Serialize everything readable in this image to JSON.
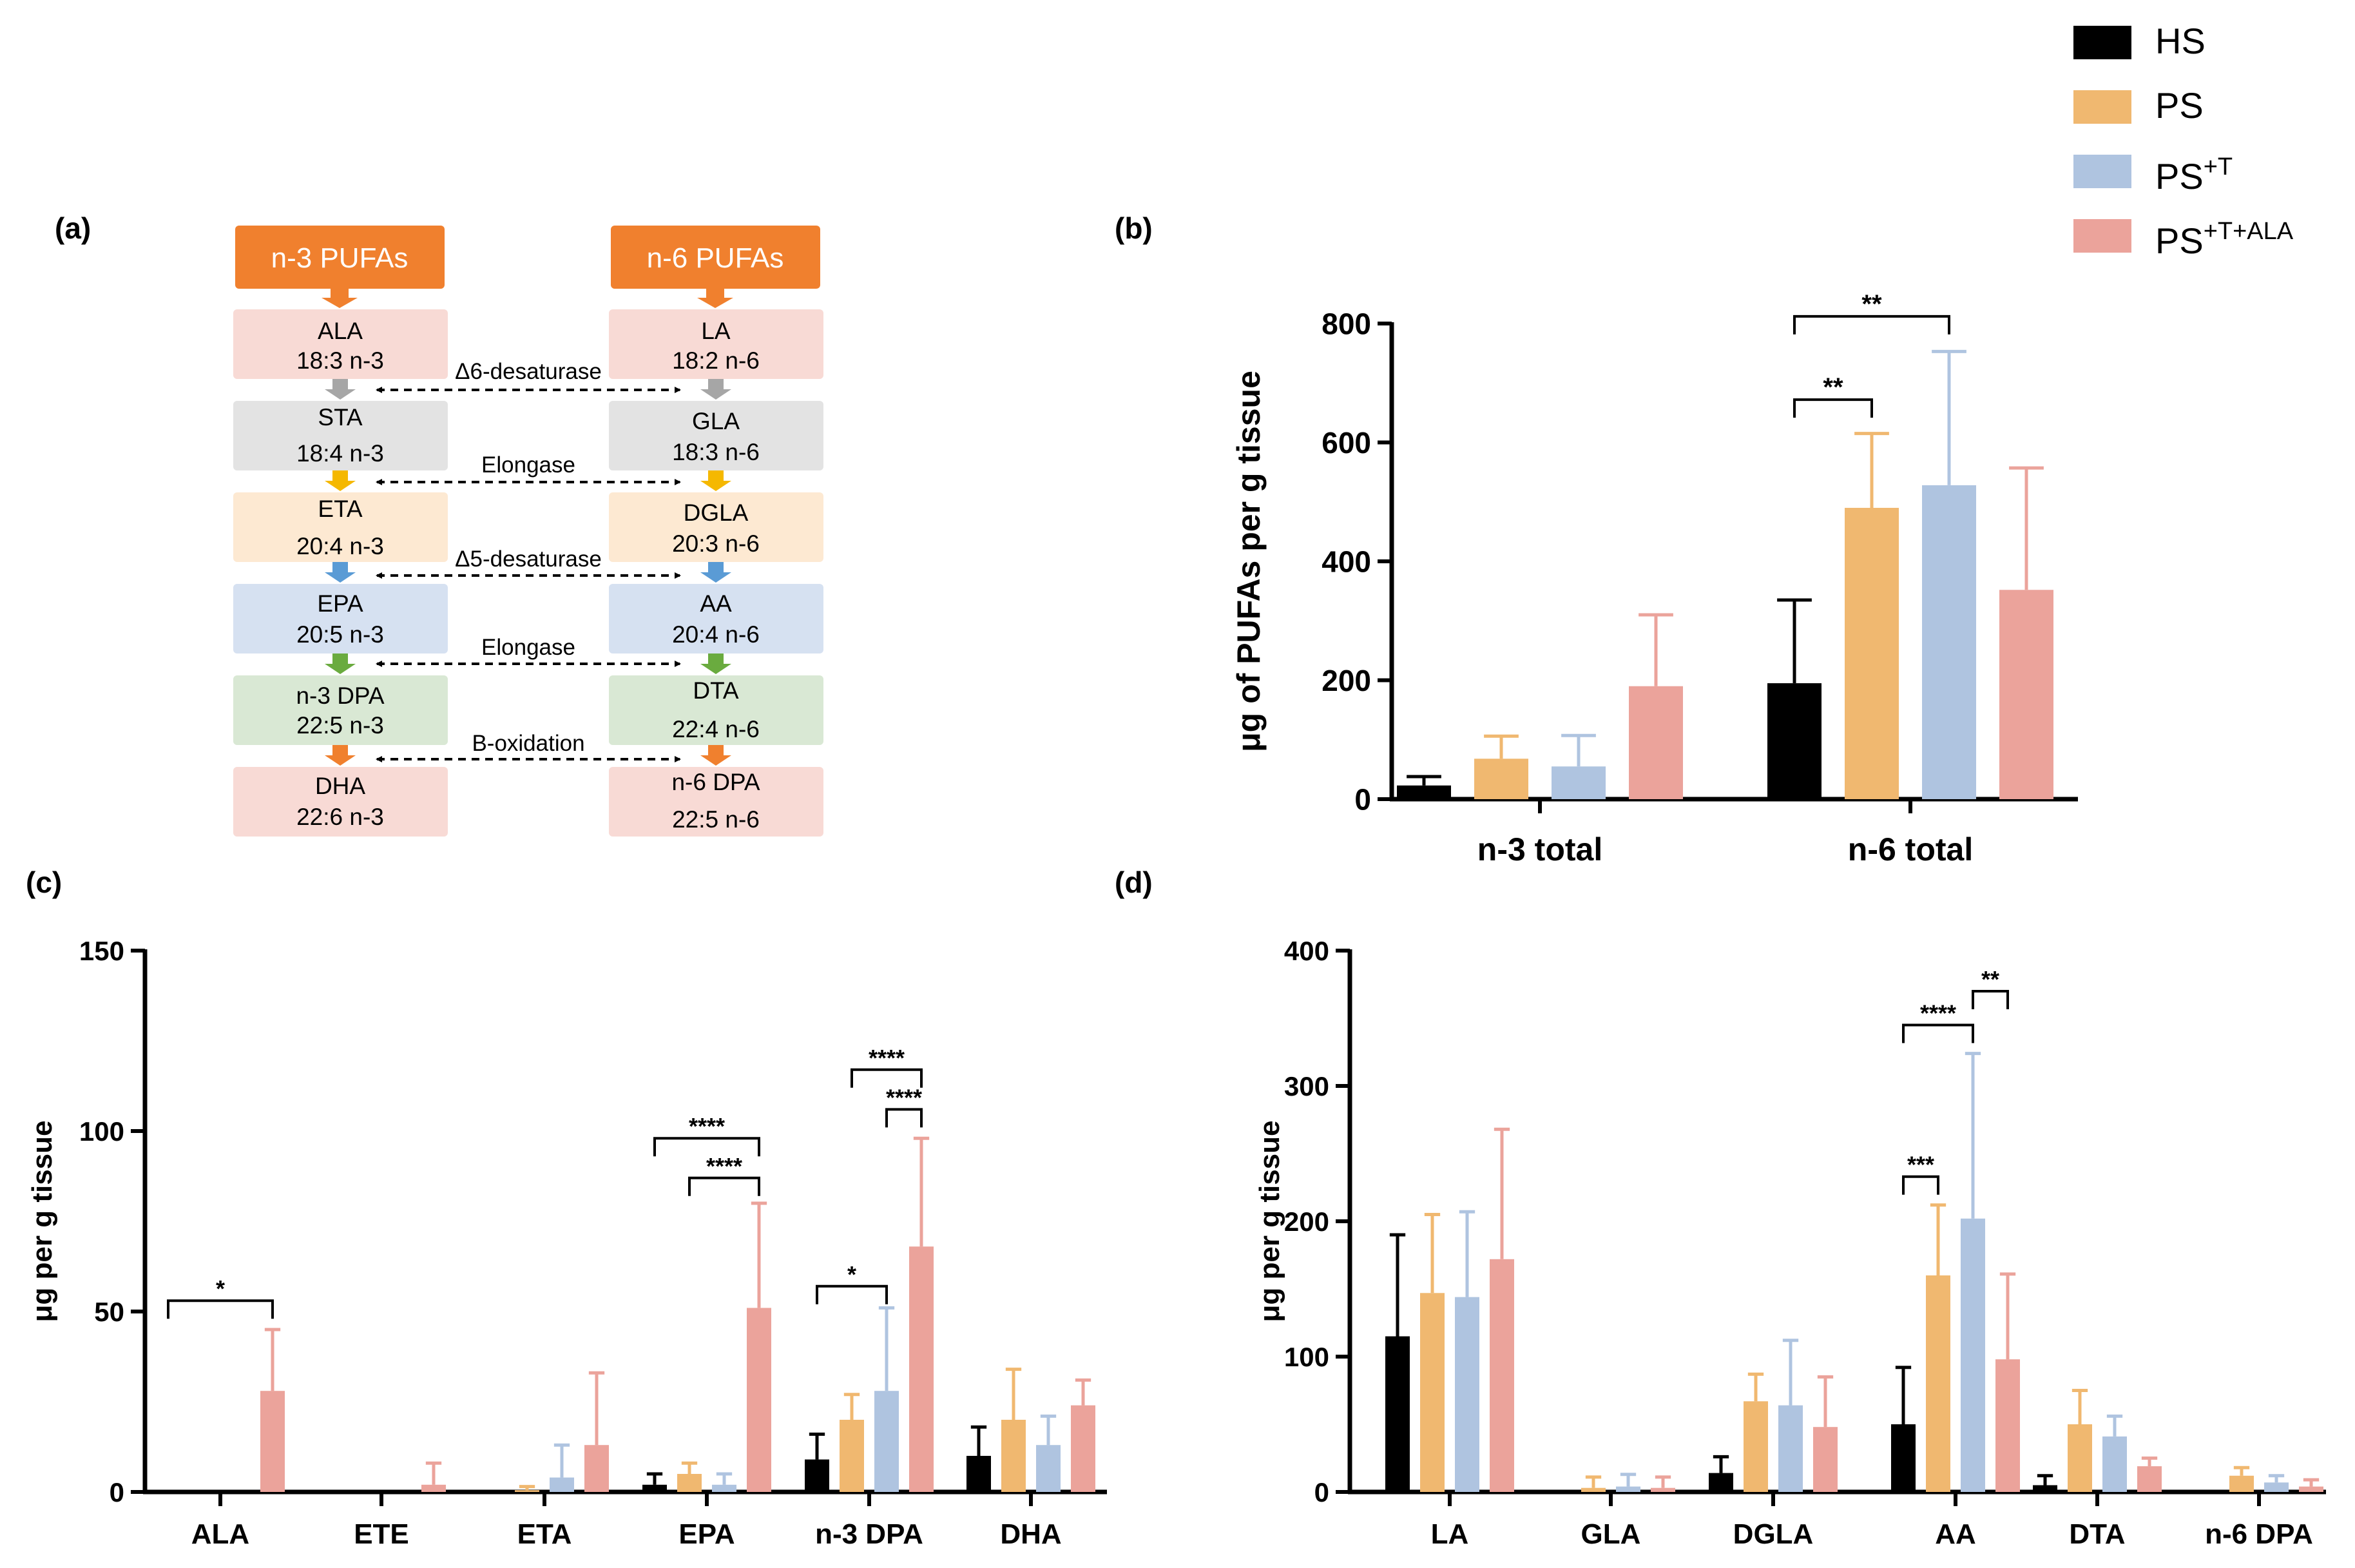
{
  "colors": {
    "HS": "#000000",
    "PS": "#F0B870",
    "PST": "#AFC4E0",
    "PSTALA": "#EBA39B",
    "arrow_orange": "#F0802E"
  },
  "legend": [
    {
      "key": "HS",
      "base": "HS",
      "sup": ""
    },
    {
      "key": "PS",
      "base": "PS",
      "sup": ""
    },
    {
      "key": "PST",
      "base": "PS",
      "sup": "+T"
    },
    {
      "key": "PSTALA",
      "base": "PS",
      "sup": "+T+ALA"
    }
  ],
  "panel_a": {
    "label": "(a)",
    "n3_header": "n-3 PUFAs",
    "n6_header": "n-6 PUFAs",
    "rows": [
      {
        "n3_name": "ALA",
        "n3_formula": "18:3 n-3",
        "n6_name": "LA",
        "n6_formula": "18:2 n-6",
        "fill": "#F8DAD5"
      },
      {
        "n3_name": "STA",
        "n3_formula": "18:4 n-3",
        "n6_name": "GLA",
        "n6_formula": "18:3 n-6",
        "fill": "#E3E3E3"
      },
      {
        "n3_name": "ETA",
        "n3_formula": "20:4 n-3",
        "n6_name": "DGLA",
        "n6_formula": "20:3 n-6",
        "fill": "#FDE9D2"
      },
      {
        "n3_name": "EPA",
        "n3_formula": "20:5 n-3",
        "n6_name": "AA",
        "n6_formula": "20:4 n-6",
        "fill": "#D6E1F1"
      },
      {
        "n3_name": "n-3 DPA",
        "n3_formula": "22:5 n-3",
        "n6_name": "DTA",
        "n6_formula": "22:4 n-6",
        "fill": "#D9E8D4"
      },
      {
        "n3_name": "DHA",
        "n3_formula": "22:6 n-3",
        "n6_name": "n-6 DPA",
        "n6_formula": "22:5 n-6",
        "fill": "#F8DAD5"
      }
    ],
    "steps": [
      {
        "enzyme": "Δ6-desaturase",
        "arrow_color": "#A6A6A6"
      },
      {
        "enzyme": "Elongase",
        "arrow_color": "#F5B800"
      },
      {
        "enzyme": "Δ5-desaturase",
        "arrow_color": "#5A9BD5"
      },
      {
        "enzyme": "Elongase",
        "arrow_color": "#6AAB3F"
      },
      {
        "enzyme": "B-oxidation",
        "arrow_color": "#F0802E"
      }
    ]
  },
  "chart_data": [
    {
      "panel": "(b)",
      "type": "bar",
      "ylabel": "μg of PUFAs per g tissue",
      "xlabel": "",
      "ylim": [
        0,
        800
      ],
      "yticks": [
        "0",
        "200",
        "400",
        "600",
        "800"
      ],
      "categories": [
        "n-3 total",
        "n-6 total"
      ],
      "series": [
        {
          "key": "HS",
          "name": "HS",
          "values": [
            23,
            195
          ],
          "errors": [
            15,
            140
          ]
        },
        {
          "key": "PS",
          "name": "PS",
          "values": [
            68,
            490
          ],
          "errors": [
            38,
            125
          ]
        },
        {
          "key": "PST",
          "name": "PS+T",
          "values": [
            55,
            528
          ],
          "errors": [
            52,
            225
          ]
        },
        {
          "key": "PSTALA",
          "name": "PS+T+ALA",
          "values": [
            190,
            352
          ],
          "errors": [
            120,
            205
          ]
        }
      ],
      "significance": [
        {
          "label": "**",
          "cat": 1,
          "from": 0,
          "to": 2,
          "y": 812
        },
        {
          "label": "**",
          "cat": 1,
          "from": 0,
          "to": 1,
          "y": 672
        }
      ]
    },
    {
      "panel": "(c)",
      "type": "bar",
      "ylabel": "μg per g tissue",
      "xlabel": "",
      "ylim": [
        0,
        150
      ],
      "yticks": [
        "0",
        "50",
        "100",
        "150"
      ],
      "categories": [
        "ALA",
        "ETE",
        "ETA",
        "EPA",
        "n-3 DPA",
        "DHA"
      ],
      "series": [
        {
          "key": "HS",
          "name": "HS",
          "values": [
            0,
            0,
            0,
            2,
            9,
            10
          ],
          "errors": [
            0,
            0,
            0,
            3,
            7,
            8
          ]
        },
        {
          "key": "PS",
          "name": "PS",
          "values": [
            0,
            0,
            0.5,
            5,
            20,
            20
          ],
          "errors": [
            0,
            0,
            1,
            3,
            7,
            14
          ]
        },
        {
          "key": "PST",
          "name": "PS+T",
          "values": [
            0,
            0,
            4,
            2,
            28,
            13
          ],
          "errors": [
            0,
            0,
            9,
            3,
            23,
            8
          ]
        },
        {
          "key": "PSTALA",
          "name": "PS+T+ALA",
          "values": [
            28,
            2,
            13,
            51,
            68,
            24
          ],
          "errors": [
            17,
            6,
            20,
            29,
            30,
            7
          ]
        }
      ],
      "significance": [
        {
          "label": "*",
          "cat": 0,
          "from": 0,
          "to": 3,
          "y": 53
        },
        {
          "label": "****",
          "cat": 3,
          "from": 0,
          "to": 3,
          "y": 98
        },
        {
          "label": "****",
          "cat": 3,
          "from": 1,
          "to": 3,
          "y": 87
        },
        {
          "label": "****",
          "cat": 4,
          "from": 1,
          "to": 3,
          "y": 117
        },
        {
          "label": "****",
          "cat": 4,
          "from": 2,
          "to": 3,
          "y": 106
        },
        {
          "label": "*",
          "cat": 4,
          "from": 0,
          "to": 2,
          "y": 57
        }
      ]
    },
    {
      "panel": "(d)",
      "type": "bar",
      "ylabel": "μg per g tissue",
      "xlabel": "",
      "ylim": [
        0,
        400
      ],
      "yticks": [
        "0",
        "100",
        "200",
        "300",
        "400"
      ],
      "categories": [
        "LA",
        "GLA",
        "DGLA",
        "AA",
        "DTA",
        "n-6 DPA"
      ],
      "series": [
        {
          "key": "HS",
          "name": "HS",
          "values": [
            115,
            0,
            14,
            50,
            5,
            0
          ],
          "errors": [
            75,
            0,
            12,
            42,
            7,
            0
          ]
        },
        {
          "key": "PS",
          "name": "PS",
          "values": [
            147,
            3,
            67,
            160,
            50,
            12
          ],
          "errors": [
            58,
            8,
            20,
            52,
            25,
            6
          ]
        },
        {
          "key": "PST",
          "name": "PS+T",
          "values": [
            144,
            4,
            64,
            202,
            41,
            7
          ],
          "errors": [
            63,
            9,
            48,
            122,
            15,
            5
          ]
        },
        {
          "key": "PSTALA",
          "name": "PS+T+ALA",
          "values": [
            172,
            3,
            48,
            98,
            19,
            4
          ],
          "errors": [
            96,
            8,
            37,
            63,
            6,
            5
          ]
        }
      ],
      "significance": [
        {
          "label": "****",
          "cat": 3,
          "from": 0,
          "to": 2,
          "y": 345
        },
        {
          "label": "**",
          "cat": 3,
          "from": 2,
          "to": 3,
          "y": 370
        },
        {
          "label": "***",
          "cat": 3,
          "from": 0,
          "to": 1,
          "y": 233
        }
      ]
    }
  ]
}
